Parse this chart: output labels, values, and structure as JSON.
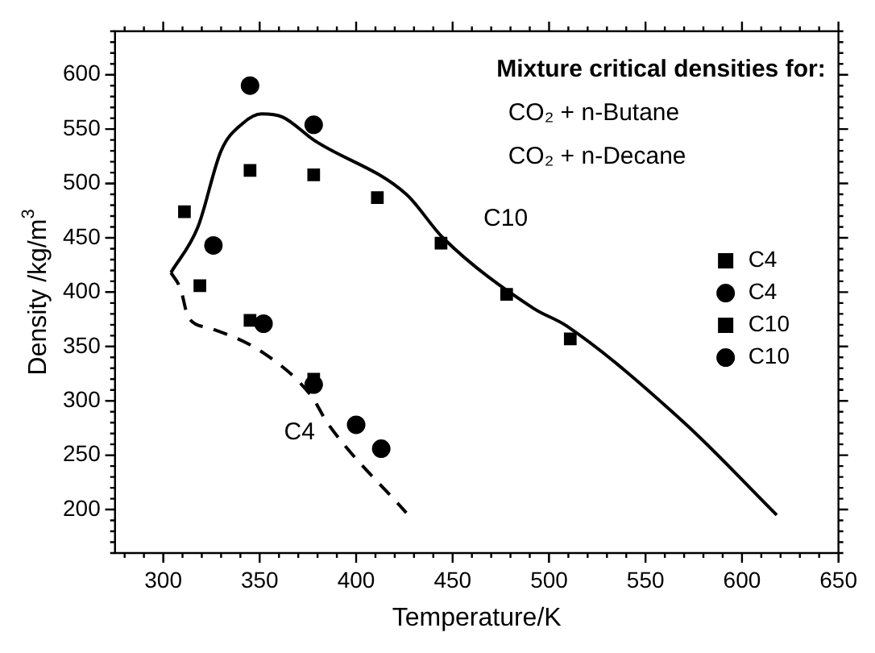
{
  "chart_data": {
    "type": "scatter",
    "xlabel": "Temperature/K",
    "ylabel": "Density /kg/m$^{3}$",
    "xlim": [
      275,
      650
    ],
    "xticks": [
      300,
      350,
      400,
      450,
      500,
      550,
      600,
      650
    ],
    "ylim": [
      160,
      640
    ],
    "yticks": [
      200,
      250,
      300,
      350,
      400,
      450,
      500,
      550,
      600
    ],
    "grid": false,
    "legend": "right",
    "annotations": [
      "Mixture critical densities for:",
      "CO₂ + n-Butane",
      "CO₂ + n-Decane",
      "C10",
      "C4"
    ],
    "series": [
      {
        "name": "C4",
        "color": "#000000",
        "marker": "square",
        "x": [
          319,
          345,
          378
        ],
        "values": [
          406,
          374,
          320
        ]
      },
      {
        "name": "C4",
        "color": "#000000",
        "marker": "circle",
        "x": [
          326,
          352,
          378,
          400,
          413
        ],
        "values": [
          443,
          371,
          315,
          278,
          256
        ]
      },
      {
        "name": "C10",
        "color": "#000000",
        "marker": "square",
        "x": [
          311,
          345,
          378,
          411,
          444,
          478,
          511
        ],
        "values": [
          474,
          512,
          508,
          487,
          445,
          398,
          357
        ]
      },
      {
        "name": "C10",
        "color": "#000000",
        "marker": "circle",
        "x": [
          345,
          378
        ],
        "values": [
          590,
          554
        ]
      },
      {
        "type": "line",
        "color": "#000000",
        "line_style": "solid",
        "marker": "none",
        "x": [
          304,
          318,
          330,
          341,
          351,
          362,
          378,
          426,
          445,
          492,
          509,
          570,
          618
        ],
        "values": [
          418,
          460,
          530,
          555,
          564,
          561,
          540,
          490,
          450,
          385,
          369,
          280,
          195
        ]
      },
      {
        "type": "line",
        "color": "#000000",
        "line_style": "dashed",
        "marker": "none",
        "x": [
          304,
          309,
          313,
          324,
          352,
          377,
          385,
          426
        ],
        "values": [
          418,
          403,
          377,
          367,
          344,
          304,
          280,
          197
        ]
      }
    ]
  }
}
